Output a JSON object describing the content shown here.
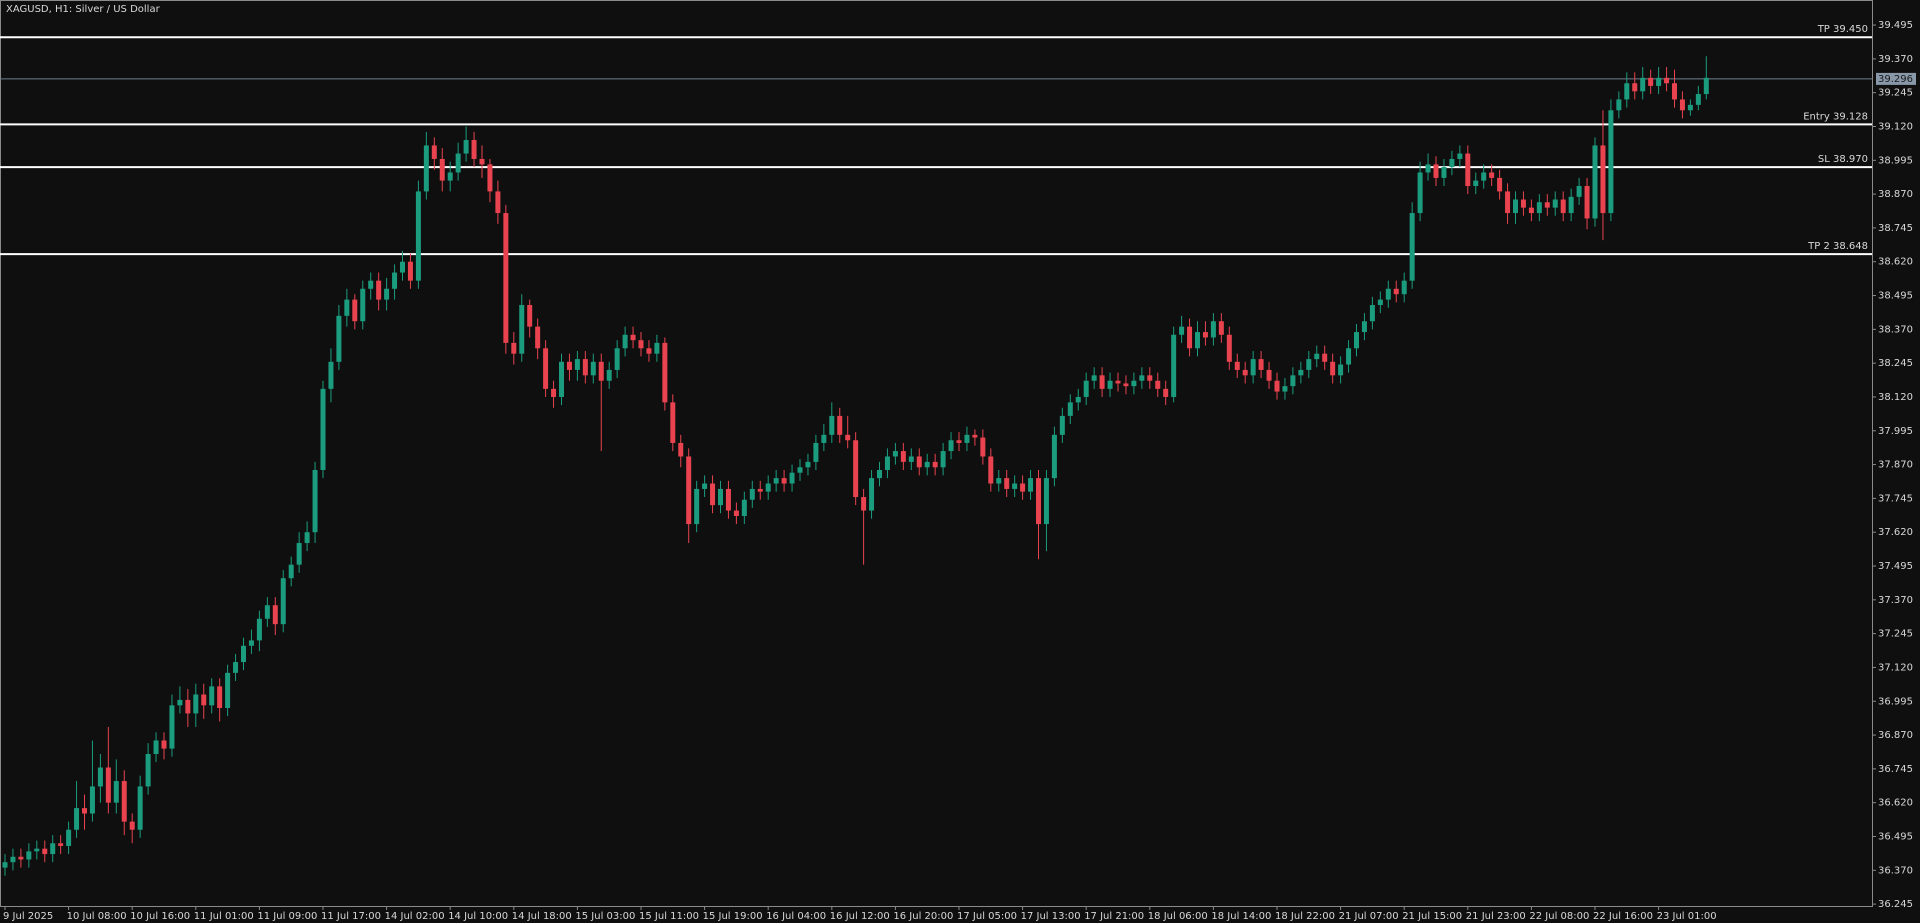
{
  "chart_data": {
    "type": "candlestick",
    "title": "XAGUSD, H1:  Silver / US Dollar",
    "bull_color": "#1b9c7e",
    "bear_color": "#e8434f",
    "ylim": [
      36.238,
      39.584
    ],
    "yticks": [
      39.495,
      {
        "value": 39.37,
        "label": "39.370"
      },
      39.245,
      {
        "value": 39.12,
        "label": "39.120"
      },
      38.995,
      {
        "value": 38.87,
        "label": "38.870"
      },
      38.745,
      {
        "value": 38.62,
        "label": "38.620"
      },
      38.495,
      {
        "value": 38.37,
        "label": "38.370"
      },
      38.245,
      {
        "value": 38.12,
        "label": "38.120"
      },
      37.995,
      {
        "value": 37.87,
        "label": "37.870"
      },
      37.745,
      {
        "value": 37.62,
        "label": "37.620"
      },
      37.495,
      {
        "value": 37.37,
        "label": "37.370"
      },
      37.245,
      {
        "value": 37.12,
        "label": "37.120"
      },
      36.995,
      {
        "value": 36.87,
        "label": "36.870"
      },
      36.745,
      {
        "value": 36.62,
        "label": "36.620"
      },
      36.495,
      {
        "value": 36.37,
        "label": "36.370"
      },
      36.245
    ],
    "levels": [
      {
        "label": "TP 39.450",
        "value": 39.45
      },
      {
        "label": "Entry 39.128",
        "value": 39.128
      },
      {
        "label": "SL 38.970",
        "value": 38.97
      },
      {
        "label": "TP 2 38.648",
        "value": 38.648
      }
    ],
    "current_price": {
      "label": "39.296",
      "value": 39.296
    },
    "categories": [
      "9 Jul 2025",
      null,
      null,
      null,
      null,
      null,
      null,
      null,
      "10 Jul 08:00",
      null,
      null,
      null,
      null,
      null,
      null,
      null,
      "10 Jul 16:00",
      null,
      null,
      null,
      null,
      null,
      null,
      null,
      "11 Jul 01:00",
      null,
      null,
      null,
      null,
      null,
      null,
      null,
      "11 Jul 09:00",
      null,
      null,
      null,
      null,
      null,
      null,
      null,
      "11 Jul 17:00",
      null,
      null,
      null,
      null,
      null,
      null,
      null,
      "14 Jul 02:00",
      null,
      null,
      null,
      null,
      null,
      null,
      null,
      "14 Jul 10:00",
      null,
      null,
      null,
      null,
      null,
      null,
      null,
      "14 Jul 18:00",
      null,
      null,
      null,
      null,
      null,
      null,
      null,
      "15 Jul 03:00",
      null,
      null,
      null,
      null,
      null,
      null,
      null,
      "15 Jul 11:00",
      null,
      null,
      null,
      null,
      null,
      null,
      null,
      "15 Jul 19:00",
      null,
      null,
      null,
      null,
      null,
      null,
      null,
      "16 Jul 04:00",
      null,
      null,
      null,
      null,
      null,
      null,
      null,
      "16 Jul 12:00",
      null,
      null,
      null,
      null,
      null,
      null,
      null,
      "16 Jul 20:00",
      null,
      null,
      null,
      null,
      null,
      null,
      null,
      "17 Jul 05:00",
      null,
      null,
      null,
      null,
      null,
      null,
      null,
      "17 Jul 13:00",
      null,
      null,
      null,
      null,
      null,
      null,
      null,
      "17 Jul 21:00",
      null,
      null,
      null,
      null,
      null,
      null,
      null,
      "18 Jul 06:00",
      null,
      null,
      null,
      null,
      null,
      null,
      null,
      "18 Jul 14:00",
      null,
      null,
      null,
      null,
      null,
      null,
      null,
      "18 Jul 22:00",
      null,
      null,
      null,
      null,
      null,
      null,
      null,
      "21 Jul 07:00",
      null,
      null,
      null,
      null,
      null,
      null,
      null,
      "21 Jul 15:00",
      null,
      null,
      null,
      null,
      null,
      null,
      null,
      "21 Jul 23:00",
      null,
      null,
      null,
      null,
      null,
      null,
      null,
      "22 Jul 08:00",
      null,
      null,
      null,
      null,
      null,
      null,
      null,
      "22 Jul 16:00",
      null,
      null,
      null,
      null,
      null,
      null,
      null,
      "23 Jul 01:00",
      null,
      null,
      null,
      null,
      null,
      null
    ],
    "open": [
      36.38,
      36.4,
      36.42,
      36.41,
      36.44,
      36.45,
      36.43,
      36.47,
      36.46,
      36.52,
      36.6,
      36.58,
      36.68,
      36.75,
      36.62,
      36.7,
      36.55,
      36.52,
      36.68,
      36.8,
      36.85,
      36.82,
      36.98,
      37.0,
      36.95,
      37.02,
      36.98,
      37.05,
      36.97,
      37.1,
      37.14,
      37.2,
      37.22,
      37.3,
      37.35,
      37.28,
      37.45,
      37.5,
      37.58,
      37.62,
      37.85,
      38.15,
      38.25,
      38.42,
      38.48,
      38.4,
      38.52,
      38.55,
      38.48,
      38.52,
      38.58,
      38.62,
      38.55,
      38.88,
      39.05,
      39.0,
      38.92,
      38.95,
      39.02,
      39.07,
      39.0,
      38.98,
      38.88,
      38.8,
      38.32,
      38.28,
      38.46,
      38.38,
      38.3,
      38.15,
      38.12,
      38.25,
      38.22,
      38.26,
      38.2,
      38.25,
      38.18,
      38.22,
      38.3,
      38.35,
      38.33,
      38.3,
      38.28,
      38.32,
      38.1,
      37.95,
      37.9,
      37.65,
      37.78,
      37.8,
      37.72,
      37.78,
      37.7,
      37.68,
      37.74,
      37.78,
      37.77,
      37.8,
      37.82,
      37.8,
      37.84,
      37.86,
      37.88,
      37.95,
      37.98,
      38.05,
      37.98,
      37.96,
      37.75,
      37.7,
      37.82,
      37.85,
      37.9,
      37.92,
      37.88,
      37.9,
      37.86,
      37.88,
      37.86,
      37.92,
      37.96,
      37.95,
      37.98,
      37.97,
      37.9,
      37.8,
      37.82,
      37.78,
      37.8,
      37.77,
      37.82,
      37.65,
      37.82,
      37.98,
      38.05,
      38.1,
      38.12,
      38.18,
      38.2,
      38.15,
      38.18,
      38.17,
      38.16,
      38.18,
      38.2,
      38.18,
      38.15,
      38.12,
      38.35,
      38.38,
      38.3,
      38.36,
      38.34,
      38.4,
      38.35,
      38.25,
      38.22,
      38.2,
      38.26,
      38.22,
      38.18,
      38.14,
      38.16,
      38.2,
      38.22,
      38.26,
      38.28,
      38.25,
      38.2,
      38.24,
      38.3,
      38.36,
      38.4,
      38.46,
      38.48,
      38.52,
      38.5,
      38.55,
      38.8,
      38.95,
      38.98,
      38.93,
      38.97,
      39.0,
      39.02,
      38.9,
      38.92,
      38.95,
      38.93,
      38.88,
      38.8,
      38.85,
      38.82,
      38.8,
      38.84,
      38.82,
      38.85,
      38.8,
      38.86,
      38.9,
      38.78,
      39.05,
      38.8,
      39.18,
      39.22,
      39.28,
      39.25,
      39.3,
      39.27,
      39.3,
      39.28,
      39.22,
      39.18,
      39.2,
      39.24
    ],
    "high": [
      36.43,
      36.45,
      36.45,
      36.47,
      36.48,
      36.48,
      36.5,
      36.5,
      36.55,
      36.7,
      36.65,
      36.85,
      36.8,
      36.9,
      36.78,
      36.74,
      36.58,
      36.72,
      36.84,
      36.88,
      36.88,
      37.02,
      37.05,
      37.04,
      37.06,
      37.06,
      37.08,
      37.08,
      37.13,
      37.17,
      37.23,
      37.26,
      37.33,
      37.38,
      37.38,
      37.48,
      37.53,
      37.62,
      37.66,
      37.88,
      38.18,
      38.3,
      38.46,
      38.52,
      38.5,
      38.55,
      38.58,
      38.58,
      38.56,
      38.61,
      38.66,
      38.65,
      38.92,
      39.1,
      39.08,
      39.04,
      38.99,
      39.06,
      39.12,
      39.1,
      39.05,
      39.0,
      38.92,
      38.83,
      38.36,
      38.5,
      38.48,
      38.41,
      38.33,
      38.18,
      38.28,
      38.28,
      38.29,
      38.29,
      38.28,
      38.28,
      38.25,
      38.33,
      38.38,
      38.38,
      38.36,
      38.33,
      38.35,
      38.34,
      38.13,
      37.98,
      37.93,
      37.81,
      37.83,
      37.83,
      37.81,
      37.81,
      37.73,
      37.77,
      37.81,
      37.81,
      37.83,
      37.85,
      37.85,
      37.87,
      37.89,
      37.91,
      37.98,
      38.02,
      38.1,
      38.08,
      38.05,
      37.99,
      37.78,
      37.85,
      37.88,
      37.93,
      37.95,
      37.95,
      37.93,
      37.93,
      37.91,
      37.91,
      37.95,
      37.99,
      37.99,
      38.01,
      38.0,
      38.0,
      37.93,
      37.85,
      37.85,
      37.83,
      37.83,
      37.85,
      37.85,
      37.85,
      38.01,
      38.08,
      38.13,
      38.15,
      38.21,
      38.23,
      38.23,
      38.21,
      38.21,
      38.2,
      38.21,
      38.23,
      38.23,
      38.21,
      38.18,
      38.38,
      38.42,
      38.41,
      38.4,
      38.4,
      38.43,
      38.43,
      38.38,
      38.28,
      38.25,
      38.29,
      38.29,
      38.25,
      38.21,
      38.19,
      38.23,
      38.25,
      38.29,
      38.31,
      38.31,
      38.28,
      38.27,
      38.33,
      38.39,
      38.43,
      38.49,
      38.51,
      38.55,
      38.55,
      38.58,
      38.84,
      38.99,
      39.02,
      39.01,
      39.0,
      39.03,
      39.05,
      39.05,
      38.95,
      38.98,
      38.98,
      38.96,
      38.91,
      38.88,
      38.88,
      38.85,
      38.87,
      38.87,
      38.88,
      38.88,
      38.89,
      38.93,
      38.93,
      39.08,
      39.18,
      39.22,
      39.25,
      39.32,
      39.32,
      39.34,
      39.33,
      39.34,
      39.34,
      39.33,
      39.25,
      39.22,
      39.27,
      39.38
    ],
    "low": [
      36.35,
      36.37,
      36.38,
      36.38,
      36.41,
      36.4,
      36.4,
      36.43,
      36.43,
      36.49,
      36.52,
      36.55,
      36.62,
      36.58,
      36.58,
      36.5,
      36.47,
      36.49,
      36.65,
      36.77,
      36.78,
      36.79,
      36.95,
      36.9,
      36.9,
      36.93,
      36.95,
      36.92,
      36.94,
      37.07,
      37.11,
      37.17,
      37.18,
      37.27,
      37.24,
      37.25,
      37.42,
      37.47,
      37.55,
      37.58,
      37.82,
      38.1,
      38.22,
      38.38,
      38.37,
      38.37,
      38.48,
      38.44,
      38.44,
      38.48,
      38.55,
      38.52,
      38.52,
      38.85,
      38.96,
      38.88,
      38.88,
      38.92,
      38.99,
      38.97,
      38.93,
      38.84,
      38.76,
      38.28,
      38.24,
      38.25,
      38.34,
      38.26,
      38.12,
      38.08,
      38.09,
      38.18,
      38.18,
      38.17,
      38.17,
      37.92,
      38.15,
      38.19,
      38.27,
      38.3,
      38.27,
      38.25,
      38.25,
      38.07,
      37.92,
      37.86,
      37.58,
      37.62,
      37.75,
      37.69,
      37.69,
      37.67,
      37.65,
      37.65,
      37.71,
      37.74,
      37.74,
      37.77,
      37.77,
      37.77,
      37.81,
      37.83,
      37.85,
      37.92,
      37.95,
      37.95,
      37.93,
      37.72,
      37.5,
      37.67,
      37.79,
      37.82,
      37.87,
      37.85,
      37.85,
      37.83,
      37.83,
      37.83,
      37.83,
      37.89,
      37.92,
      37.92,
      37.94,
      37.87,
      37.77,
      37.77,
      37.75,
      37.75,
      37.74,
      37.74,
      37.52,
      37.55,
      37.79,
      37.95,
      38.02,
      38.07,
      38.09,
      38.15,
      38.12,
      38.12,
      38.14,
      38.13,
      38.13,
      38.15,
      38.15,
      38.12,
      38.09,
      38.1,
      38.32,
      38.27,
      38.27,
      38.31,
      38.31,
      38.32,
      38.22,
      38.19,
      38.17,
      38.17,
      38.19,
      38.15,
      38.11,
      38.11,
      38.13,
      38.17,
      38.19,
      38.23,
      38.22,
      38.17,
      38.17,
      38.21,
      38.27,
      38.33,
      38.37,
      38.43,
      38.45,
      38.47,
      38.47,
      38.52,
      38.77,
      38.92,
      38.9,
      38.9,
      38.94,
      38.97,
      38.87,
      38.87,
      38.89,
      38.9,
      38.85,
      38.76,
      38.76,
      38.79,
      38.77,
      38.77,
      38.79,
      38.79,
      38.77,
      38.77,
      38.83,
      38.74,
      38.75,
      38.7,
      38.77,
      39.15,
      39.19,
      39.22,
      39.22,
      39.24,
      39.24,
      39.25,
      39.19,
      39.15,
      39.16,
      39.18,
      39.22
    ],
    "close": [
      36.4,
      36.42,
      36.41,
      36.44,
      36.45,
      36.43,
      36.47,
      36.46,
      36.52,
      36.6,
      36.58,
      36.68,
      36.75,
      36.62,
      36.7,
      36.55,
      36.52,
      36.68,
      36.8,
      36.85,
      36.82,
      36.98,
      37.0,
      36.95,
      37.02,
      36.98,
      37.05,
      36.97,
      37.1,
      37.14,
      37.2,
      37.22,
      37.3,
      37.35,
      37.28,
      37.45,
      37.5,
      37.58,
      37.62,
      37.85,
      38.15,
      38.25,
      38.42,
      38.48,
      38.4,
      38.52,
      38.55,
      38.48,
      38.52,
      38.58,
      38.62,
      38.55,
      38.88,
      39.05,
      39.0,
      38.92,
      38.95,
      39.02,
      39.07,
      39.0,
      38.98,
      38.88,
      38.8,
      38.32,
      38.28,
      38.46,
      38.38,
      38.3,
      38.15,
      38.12,
      38.25,
      38.22,
      38.26,
      38.2,
      38.25,
      38.18,
      38.22,
      38.3,
      38.35,
      38.33,
      38.3,
      38.28,
      38.32,
      38.1,
      37.95,
      37.9,
      37.65,
      37.78,
      37.8,
      37.72,
      37.78,
      37.7,
      37.68,
      37.74,
      37.78,
      37.77,
      37.8,
      37.82,
      37.8,
      37.84,
      37.86,
      37.88,
      37.95,
      37.98,
      38.05,
      37.98,
      37.96,
      37.75,
      37.7,
      37.82,
      37.85,
      37.9,
      37.92,
      37.88,
      37.9,
      37.86,
      37.88,
      37.86,
      37.92,
      37.96,
      37.95,
      37.98,
      37.97,
      37.9,
      37.8,
      37.82,
      37.78,
      37.8,
      37.77,
      37.82,
      37.65,
      37.82,
      37.98,
      38.05,
      38.1,
      38.12,
      38.18,
      38.2,
      38.15,
      38.18,
      38.17,
      38.16,
      38.18,
      38.2,
      38.18,
      38.15,
      38.12,
      38.35,
      38.38,
      38.3,
      38.36,
      38.34,
      38.4,
      38.35,
      38.25,
      38.22,
      38.2,
      38.26,
      38.22,
      38.18,
      38.14,
      38.16,
      38.2,
      38.22,
      38.26,
      38.28,
      38.25,
      38.2,
      38.24,
      38.3,
      38.36,
      38.4,
      38.46,
      38.48,
      38.52,
      38.5,
      38.55,
      38.8,
      38.95,
      38.98,
      38.93,
      38.97,
      39.0,
      39.02,
      38.9,
      38.92,
      38.95,
      38.93,
      38.88,
      38.8,
      38.85,
      38.82,
      38.8,
      38.84,
      38.82,
      38.85,
      38.8,
      38.86,
      38.9,
      38.78,
      39.05,
      38.8,
      39.18,
      39.22,
      39.28,
      39.25,
      39.3,
      39.27,
      39.3,
      39.28,
      39.22,
      39.18,
      39.2,
      39.24,
      39.3
    ]
  }
}
